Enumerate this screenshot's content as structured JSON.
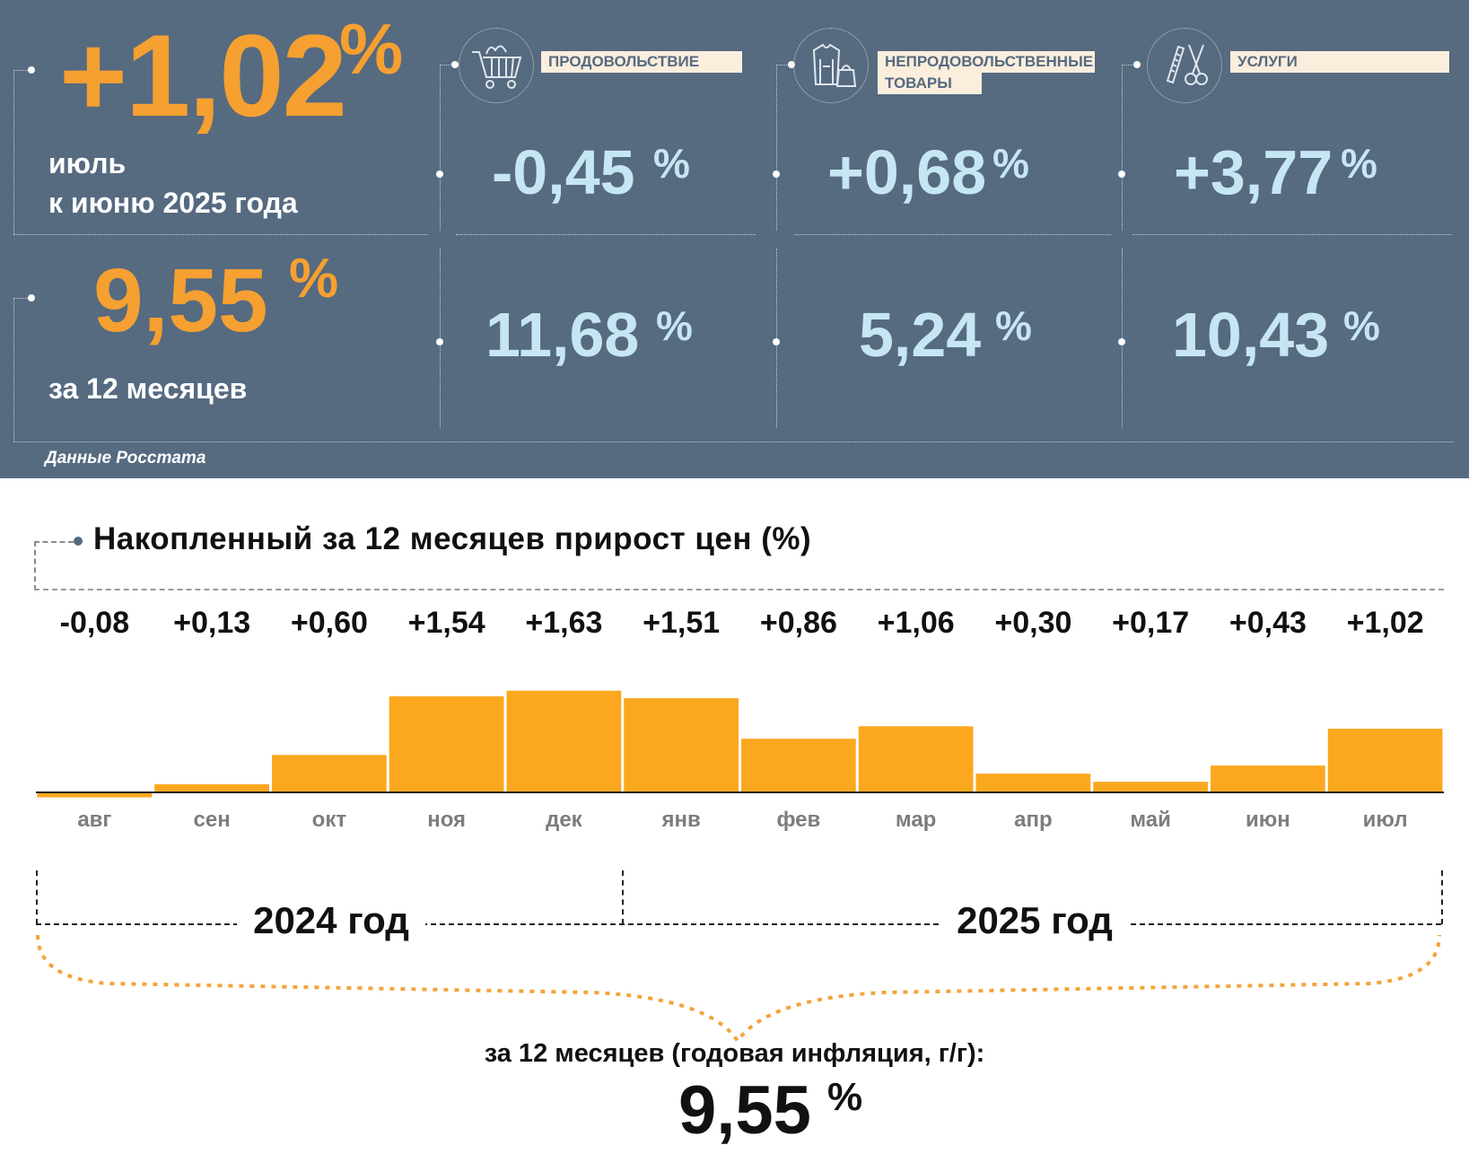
{
  "summary": {
    "monthly_value": "+1,02",
    "monthly_unit": "%",
    "monthly_caption_1": "июль",
    "monthly_caption_2": "к июню 2025 года",
    "annual_value": "9,55",
    "annual_unit": "%",
    "annual_caption": "за 12 месяцев",
    "source": "Данные Росстата"
  },
  "categories": [
    {
      "label_1": "ПРОДОВОЛЬСТВИЕ",
      "label_2": "",
      "icon": "shopping-cart-icon",
      "monthly": "-0,45",
      "annual": "11,68",
      "unit": "%"
    },
    {
      "label_1": "НЕПРОДОВОЛЬСТВЕННЫЕ",
      "label_2": "ТОВАРЫ",
      "icon": "clothing-bag-icon",
      "monthly": "+0,68",
      "annual": "5,24",
      "unit": "%"
    },
    {
      "label_1": "УСЛУГИ",
      "label_2": "",
      "icon": "comb-scissors-icon",
      "monthly": "+3,77",
      "annual": "10,43",
      "unit": "%"
    }
  ],
  "chart_data": {
    "type": "bar",
    "title": "Накопленный за 12 месяцев прирост цен (%)",
    "categories": [
      "авг",
      "сен",
      "окт",
      "ноя",
      "дек",
      "янв",
      "фев",
      "мар",
      "апр",
      "май",
      "июн",
      "июл"
    ],
    "values": [
      -0.08,
      0.13,
      0.6,
      1.54,
      1.63,
      1.51,
      0.86,
      1.06,
      0.3,
      0.17,
      0.43,
      1.02
    ],
    "value_labels": [
      "-0,08",
      "+0,13",
      "+0,60",
      "+1,54",
      "+1,63",
      "+1,51",
      "+0,86",
      "+1,06",
      "+0,30",
      "+0,17",
      "+0,43",
      "+1,02"
    ],
    "year_labels": [
      "2024 год",
      "2025 год"
    ],
    "bar_color": "#fba81f"
  },
  "annual": {
    "caption": "за 12 месяцев (годовая инфляция, г/г):",
    "value": "9,55",
    "unit": "%"
  },
  "colors": {
    "panel": "#566a80",
    "orange": "#f5a031",
    "light_blue": "#c6e6f4",
    "label_bg": "#fbeedd"
  }
}
